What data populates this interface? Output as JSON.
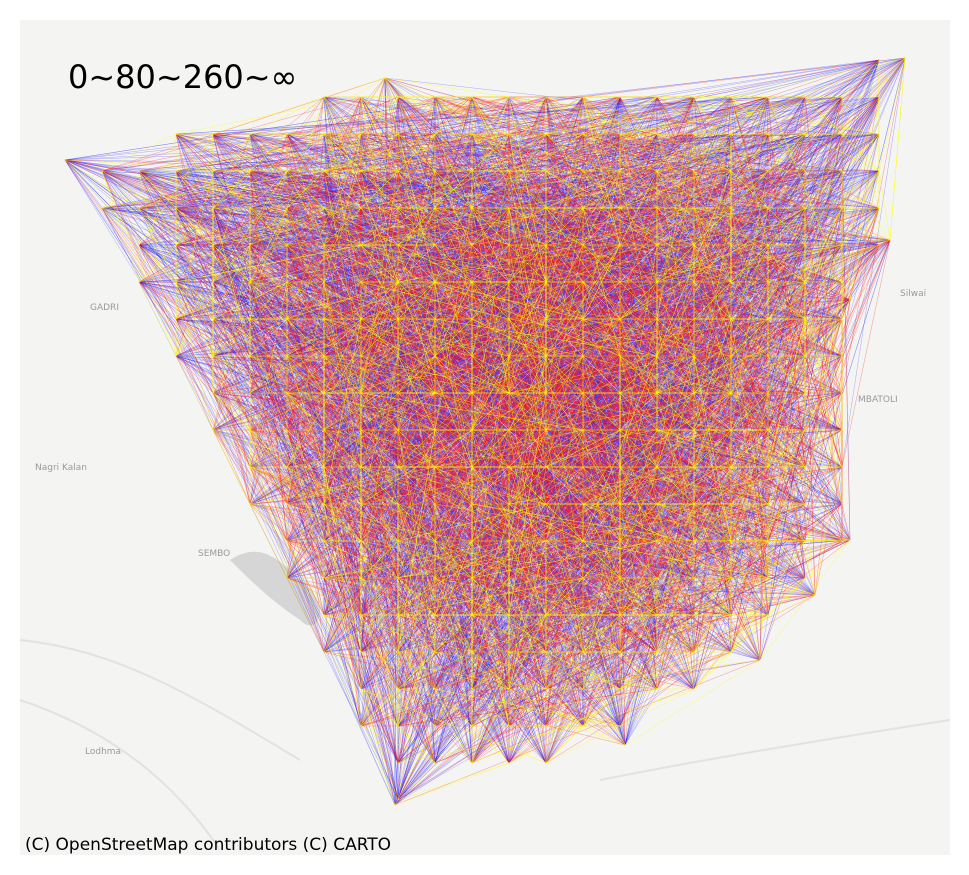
{
  "legend_text": "0~80~260~∞",
  "attribution": "(C) OpenStreetMap contributors (C) CARTO",
  "place_labels": [
    "GADRI",
    "Nagri Kalan",
    "SEMBO",
    "Lodhma",
    "Silwai",
    "MBATOLI"
  ]
}
